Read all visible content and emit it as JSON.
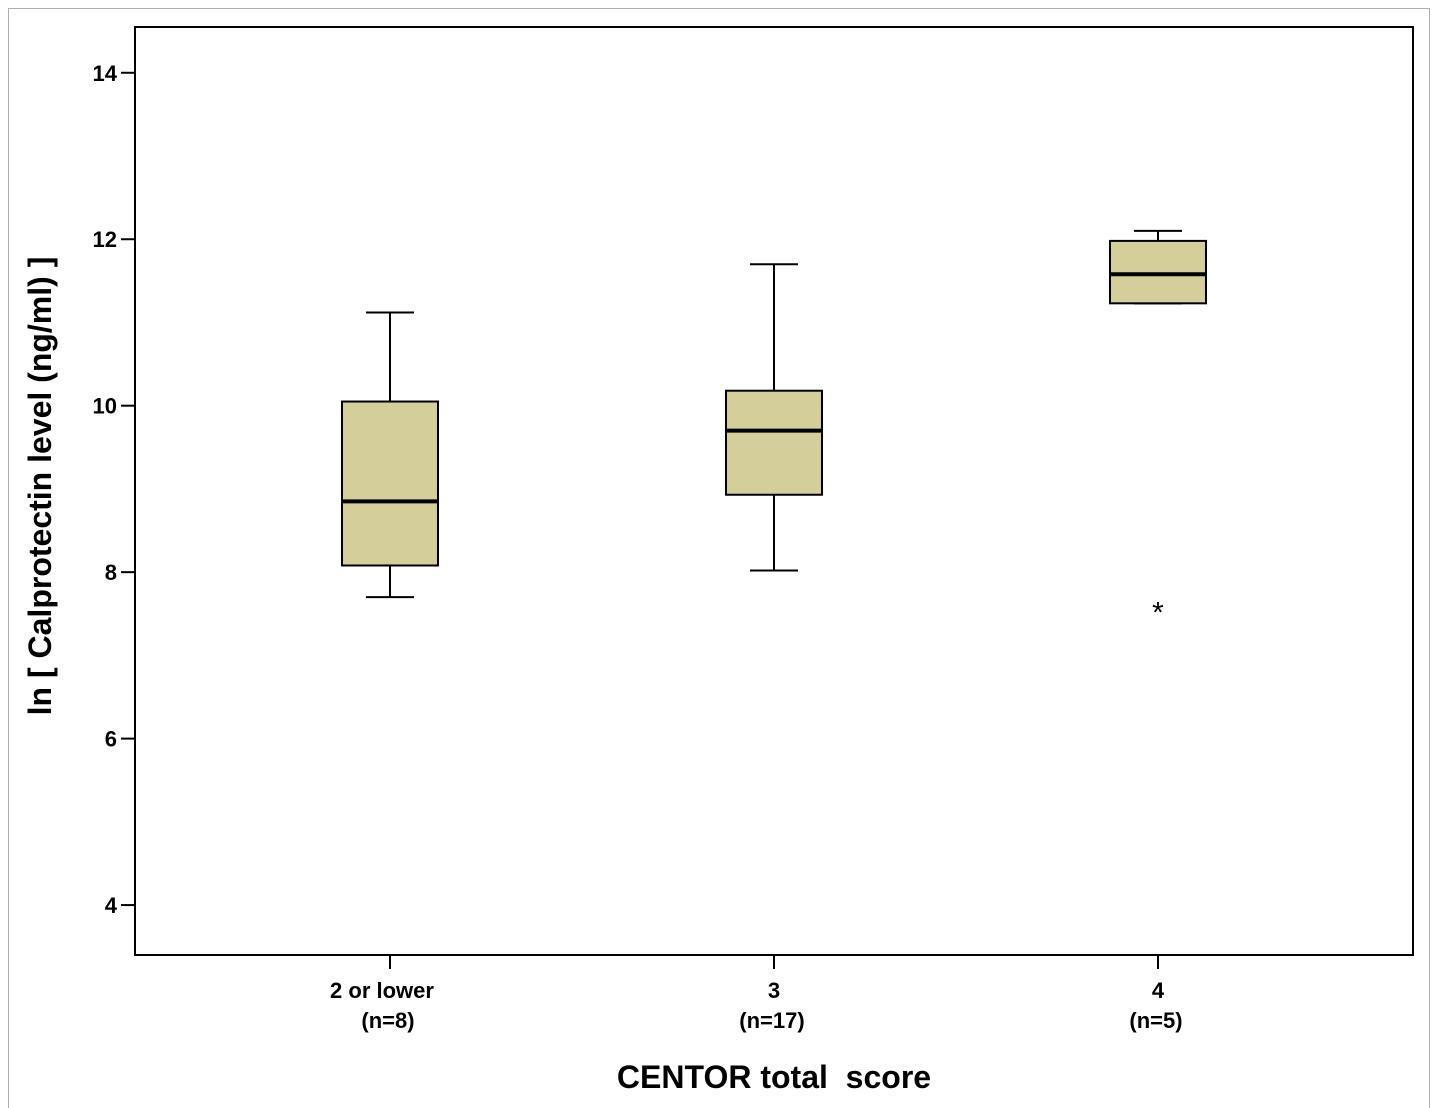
{
  "chart_data": {
    "type": "box",
    "title": "",
    "ylabel": "ln [ Calprotectin level (ng/ml) ]",
    "xlabel": "CENTOR total  score",
    "ylim": [
      3.4,
      14.55
    ],
    "yticks": [
      4,
      6,
      8,
      10,
      12,
      14
    ],
    "grid": false,
    "box_color": "#d4cf9a",
    "categories": [
      {
        "label": "2 or lower",
        "n_label": "(n=8)"
      },
      {
        "label": "3",
        "n_label": "(n=17)"
      },
      {
        "label": "4",
        "n_label": "(n=5)"
      }
    ],
    "boxes": [
      {
        "whisker_low": 7.7,
        "q1": 8.08,
        "median": 8.85,
        "q3": 10.05,
        "whisker_high": 11.12,
        "outliers": []
      },
      {
        "whisker_low": 8.02,
        "q1": 8.93,
        "median": 9.7,
        "q3": 10.18,
        "whisker_high": 11.7,
        "outliers": []
      },
      {
        "whisker_low": 11.23,
        "q1": 11.23,
        "median": 11.58,
        "q3": 11.98,
        "whisker_high": 12.1,
        "outliers": [
          7.6
        ]
      }
    ],
    "outlier_marker": "*"
  }
}
